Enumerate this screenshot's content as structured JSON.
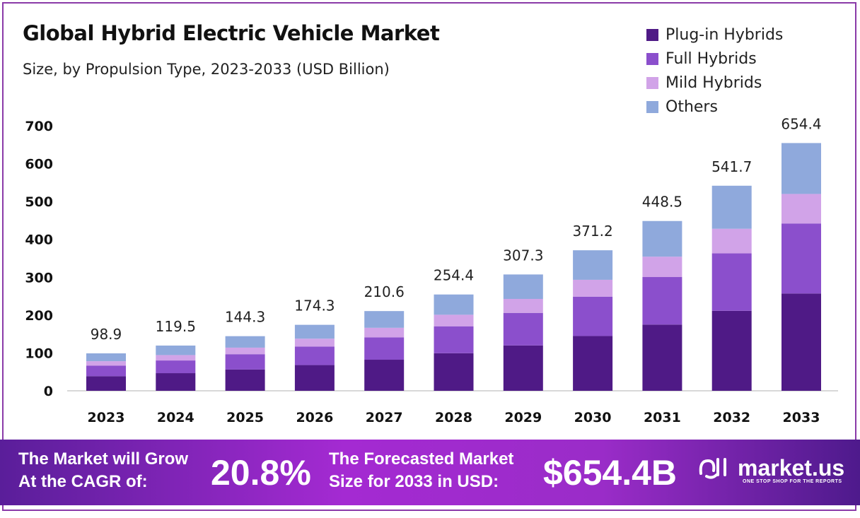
{
  "chart_data": {
    "type": "bar",
    "stacked": true,
    "title": "Global Hybrid Electric Vehicle Market",
    "subtitle": "Size, by Propulsion Type, 2023-2033 (USD Billion)",
    "categories": [
      "2023",
      "2024",
      "2025",
      "2026",
      "2027",
      "2028",
      "2029",
      "2030",
      "2031",
      "2032",
      "2033"
    ],
    "totals": [
      98.9,
      119.5,
      144.3,
      174.3,
      210.6,
      254.4,
      307.3,
      371.2,
      448.5,
      541.7,
      654.4
    ],
    "series": [
      {
        "name": "Plug-in Hybrids",
        "color": "#4f1a86",
        "values": [
          38.6,
          46.6,
          56.3,
          68.0,
          82.1,
          99.2,
          119.8,
          144.8,
          174.9,
          211.3,
          257.0
        ]
      },
      {
        "name": "Full Hybrids",
        "color": "#8b4fcc",
        "values": [
          27.7,
          33.5,
          40.4,
          48.8,
          59.0,
          71.2,
          86.0,
          103.9,
          125.6,
          151.7,
          185.0
        ]
      },
      {
        "name": "Mild Hybrids",
        "color": "#d1a3e8",
        "values": [
          11.9,
          14.3,
          17.3,
          20.9,
          25.3,
          30.5,
          36.9,
          44.5,
          53.8,
          65.0,
          78.0
        ]
      },
      {
        "name": "Others",
        "color": "#8fa9dc",
        "values": [
          20.7,
          25.1,
          30.3,
          36.6,
          44.2,
          53.5,
          64.6,
          78.0,
          94.2,
          113.7,
          134.4
        ]
      }
    ],
    "yticks": [
      0,
      100,
      200,
      300,
      400,
      500,
      600,
      700
    ],
    "ylim": [
      0,
      700
    ],
    "xlabel": "",
    "ylabel": "",
    "legend_position": "top-right",
    "grid": false
  },
  "footer": {
    "cagr_label_1": "The Market will Grow",
    "cagr_label_2": "At the CAGR of:",
    "cagr_value": "20.8%",
    "forecast_label_1": "The Forecasted Market",
    "forecast_label_2": "Size for 2033 in USD:",
    "forecast_value": "$654.4B",
    "brand": "market.us",
    "brand_tagline": "ONE STOP SHOP FOR THE REPORTS"
  }
}
